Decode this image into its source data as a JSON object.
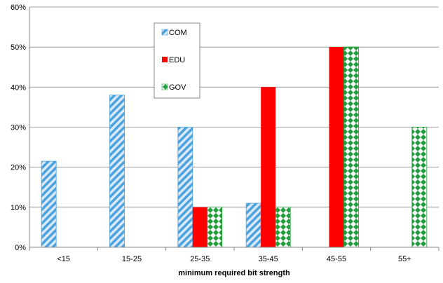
{
  "chart_data": {
    "type": "bar",
    "xlabel": "minimum required bit strength",
    "ylabel": "",
    "ylim": [
      0,
      60
    ],
    "y_ticks": [
      0,
      10,
      20,
      30,
      40,
      50,
      60
    ],
    "y_tick_suffix": "%",
    "grid": true,
    "legend_position": "top-left inside plot",
    "categories": [
      "<15",
      "15-25",
      "25-35",
      "35-45",
      "45-55",
      "55+"
    ],
    "series": [
      {
        "name": "COM",
        "pattern": "diagonal-stripes",
        "color": "#4aa3df",
        "values": [
          21.5,
          38,
          30,
          11,
          0,
          0
        ]
      },
      {
        "name": "EDU",
        "pattern": "solid",
        "color": "#ff0000",
        "values": [
          0,
          0,
          10,
          40,
          50,
          0
        ]
      },
      {
        "name": "GOV",
        "pattern": "diamond-check",
        "color": "#1f9e3a",
        "values": [
          0,
          0,
          10,
          10,
          50,
          30
        ]
      }
    ]
  }
}
